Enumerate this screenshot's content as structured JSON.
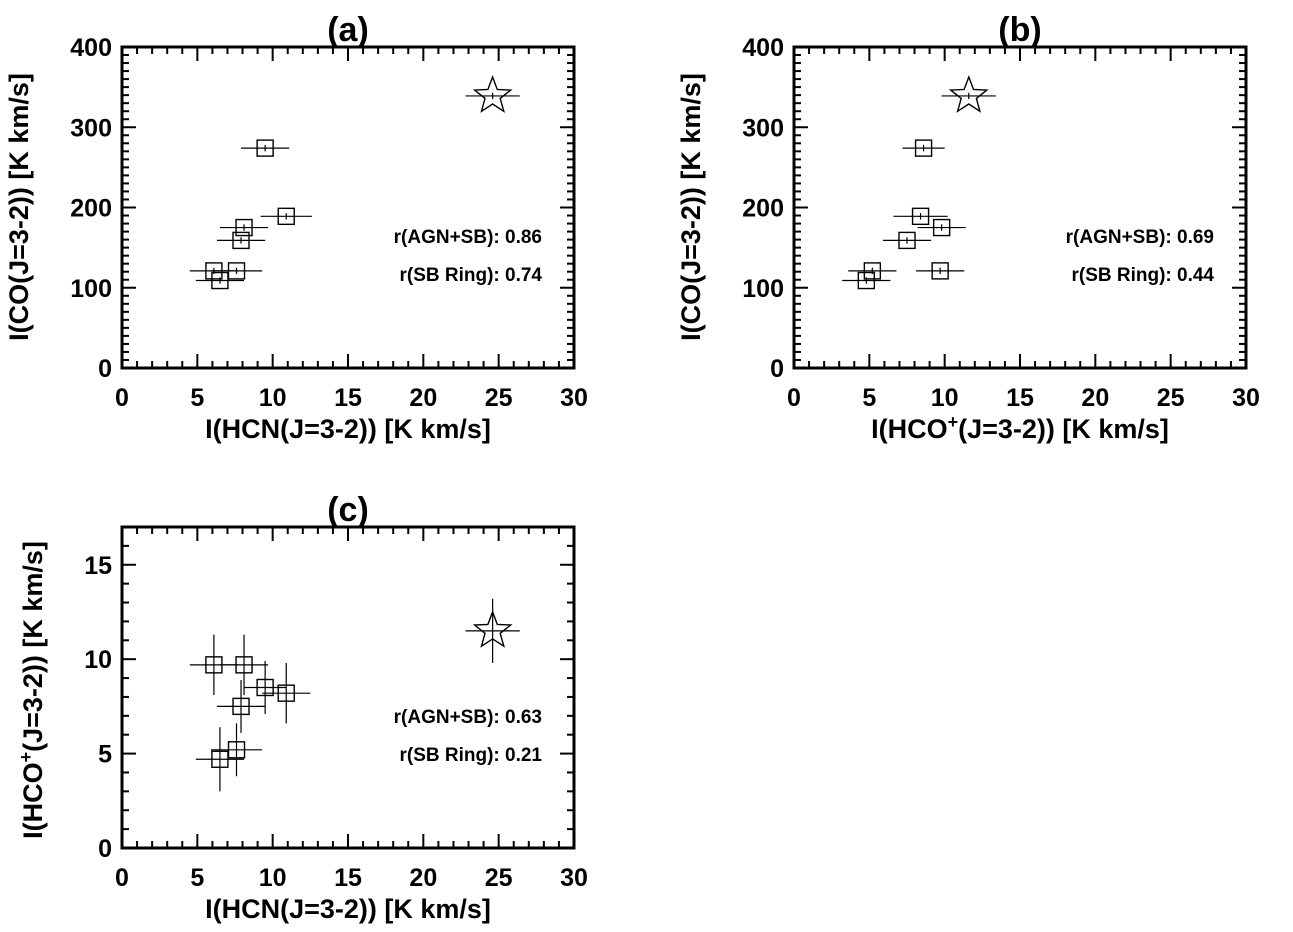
{
  "chart_data": [
    {
      "type": "scatter",
      "title": "(a)",
      "xlabel": "I(HCN(J=3-2)) [K km/s]",
      "ylabel": "I(CO(J=3-2)) [K km/s]",
      "xlim": [
        0,
        30
      ],
      "ylim": [
        0,
        400
      ],
      "xticks": [
        "0",
        "5",
        "10",
        "15",
        "20",
        "25",
        "30"
      ],
      "yticks": [
        "0",
        "100",
        "200",
        "300",
        "400"
      ],
      "annotations": [
        "r(AGN+SB): 0.86",
        "r(SB Ring): 0.74"
      ],
      "series": [
        {
          "marker": "square",
          "points": [
            {
              "x": 9.5,
              "y": 274,
              "xerr": 1.6,
              "yerr": 4
            },
            {
              "x": 8.1,
              "y": 175,
              "xerr": 1.6,
              "yerr": 4
            },
            {
              "x": 10.9,
              "y": 189,
              "xerr": 1.7,
              "yerr": 4
            },
            {
              "x": 7.9,
              "y": 159,
              "xerr": 1.6,
              "yerr": 4
            },
            {
              "x": 6.1,
              "y": 121,
              "xerr": 1.6,
              "yerr": 4
            },
            {
              "x": 6.5,
              "y": 109,
              "xerr": 1.6,
              "yerr": 4
            },
            {
              "x": 7.6,
              "y": 121,
              "xerr": 1.7,
              "yerr": 4
            }
          ]
        },
        {
          "marker": "star",
          "points": [
            {
              "x": 24.6,
              "y": 339,
              "xerr": 1.8,
              "yerr": 4
            }
          ]
        }
      ]
    },
    {
      "type": "scatter",
      "title": "(b)",
      "xlabel": "I(HCO⁺(J=3-2)) [K km/s]",
      "ylabel": "I(CO(J=3-2)) [K km/s]",
      "xlim": [
        0,
        30
      ],
      "ylim": [
        0,
        400
      ],
      "xticks": [
        "0",
        "5",
        "10",
        "15",
        "20",
        "25",
        "30"
      ],
      "yticks": [
        "0",
        "100",
        "200",
        "300",
        "400"
      ],
      "annotations": [
        "r(AGN+SB): 0.69",
        "r(SB Ring): 0.44"
      ],
      "series": [
        {
          "marker": "square",
          "points": [
            {
              "x": 8.6,
              "y": 274,
              "xerr": 1.4,
              "yerr": 4
            },
            {
              "x": 8.4,
              "y": 189,
              "xerr": 1.8,
              "yerr": 4
            },
            {
              "x": 9.8,
              "y": 175,
              "xerr": 1.6,
              "yerr": 4
            },
            {
              "x": 7.5,
              "y": 159,
              "xerr": 1.6,
              "yerr": 4
            },
            {
              "x": 5.2,
              "y": 121,
              "xerr": 1.6,
              "yerr": 4
            },
            {
              "x": 4.8,
              "y": 109,
              "xerr": 1.6,
              "yerr": 4
            },
            {
              "x": 9.7,
              "y": 121,
              "xerr": 1.6,
              "yerr": 4
            }
          ]
        },
        {
          "marker": "star",
          "points": [
            {
              "x": 11.6,
              "y": 339,
              "xerr": 1.8,
              "yerr": 4
            }
          ]
        }
      ]
    },
    {
      "type": "scatter",
      "title": "(c)",
      "xlabel": "I(HCN(J=3-2)) [K km/s]",
      "ylabel": "I(HCO⁺(J=3-2)) [K km/s]",
      "xlim": [
        0,
        30
      ],
      "ylim": [
        0,
        17
      ],
      "xticks": [
        "0",
        "5",
        "10",
        "15",
        "20",
        "25",
        "30"
      ],
      "yticks": [
        "0",
        "5",
        "10",
        "15"
      ],
      "annotations": [
        "r(AGN+SB): 0.63",
        "r(SB Ring): 0.21"
      ],
      "series": [
        {
          "marker": "square",
          "points": [
            {
              "x": 6.1,
              "y": 9.7,
              "xerr": 1.6,
              "yerr": 1.6
            },
            {
              "x": 8.1,
              "y": 9.7,
              "xerr": 1.6,
              "yerr": 1.6
            },
            {
              "x": 9.5,
              "y": 8.5,
              "xerr": 1.4,
              "yerr": 1.4
            },
            {
              "x": 10.9,
              "y": 8.2,
              "xerr": 1.6,
              "yerr": 1.6
            },
            {
              "x": 7.9,
              "y": 7.5,
              "xerr": 1.6,
              "yerr": 1.4
            },
            {
              "x": 7.6,
              "y": 5.2,
              "xerr": 1.7,
              "yerr": 1.4
            },
            {
              "x": 6.5,
              "y": 4.7,
              "xerr": 1.6,
              "yerr": 1.7
            }
          ]
        },
        {
          "marker": "star",
          "points": [
            {
              "x": 24.6,
              "y": 11.5,
              "xerr": 1.8,
              "yerr": 1.7
            }
          ]
        }
      ]
    }
  ]
}
